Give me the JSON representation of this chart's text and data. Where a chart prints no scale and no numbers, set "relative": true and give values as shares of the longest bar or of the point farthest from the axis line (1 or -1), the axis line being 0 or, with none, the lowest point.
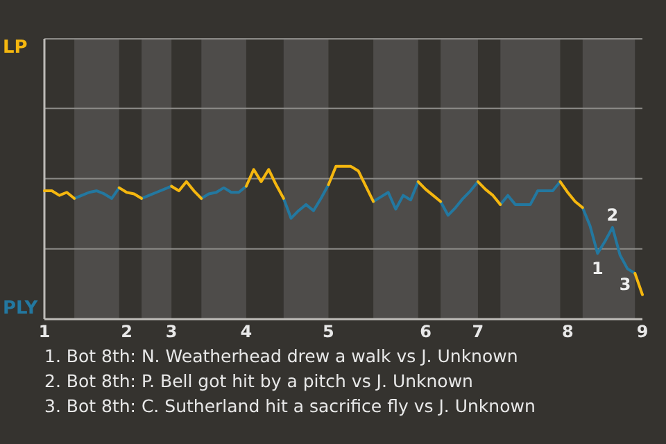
{
  "chart_data": {
    "type": "line",
    "relative": true,
    "categories": [
      "1",
      null,
      null,
      null,
      null,
      null,
      null,
      null,
      null,
      null,
      null,
      "2",
      null,
      null,
      null,
      null,
      null,
      "3",
      null,
      null,
      null,
      null,
      null,
      null,
      null,
      null,
      null,
      "4",
      null,
      null,
      null,
      null,
      null,
      null,
      null,
      null,
      null,
      null,
      "5",
      null,
      null,
      null,
      null,
      null,
      null,
      null,
      null,
      null,
      null,
      null,
      null,
      "6",
      null,
      null,
      null,
      null,
      null,
      null,
      "7",
      null,
      null,
      null,
      null,
      null,
      null,
      null,
      null,
      null,
      null,
      null,
      "8",
      null,
      null,
      null,
      null,
      null,
      null,
      null,
      null,
      null,
      "9"
    ],
    "legend": "left",
    "ref_lines": [
      {
        "axis": "y",
        "value": 0.46,
        "color": "#8c8b88"
      },
      {
        "axis": "y",
        "value": 0.92,
        "color": "#8c8b88"
      },
      {
        "axis": "y",
        "value": 1.38,
        "color": "#8c8b88"
      }
    ],
    "marker": "none",
    "line_style": "solid",
    "series": [
      {
        "name": "LP",
        "color": "#f5b70f",
        "values": [
          0.84,
          0.84,
          0.81,
          0.83,
          0.79,
          null,
          null,
          null,
          null,
          null,
          0.86,
          0.83,
          0.82,
          0.79,
          null,
          null,
          null,
          0.87,
          0.84,
          0.9,
          0.84,
          0.79,
          null,
          null,
          null,
          null,
          null,
          0.87,
          0.98,
          0.9,
          0.98,
          0.88,
          0.79,
          null,
          null,
          null,
          null,
          null,
          0.88,
          1,
          1,
          1,
          0.97,
          0.87,
          0.77,
          null,
          null,
          null,
          null,
          null,
          0.9,
          0.85,
          0.81,
          0.77,
          null,
          null,
          null,
          null,
          0.9,
          0.85,
          0.81,
          0.75,
          null,
          null,
          null,
          null,
          null,
          null,
          null,
          0.9,
          0.83,
          0.77,
          0.73,
          null,
          null,
          null,
          null,
          null,
          null,
          0.3,
          0.16
        ]
      },
      {
        "name": "PLY",
        "color": "#2378a0",
        "values": [
          null,
          null,
          null,
          null,
          0.79,
          0.81,
          0.83,
          0.84,
          0.82,
          0.79,
          0.86,
          null,
          null,
          0.79,
          0.81,
          0.83,
          0.85,
          0.87,
          null,
          null,
          null,
          0.79,
          0.82,
          0.83,
          0.86,
          0.83,
          0.83,
          0.87,
          null,
          null,
          null,
          null,
          0.79,
          0.66,
          0.71,
          0.75,
          0.71,
          0.79,
          0.88,
          null,
          null,
          null,
          null,
          null,
          0.77,
          0.8,
          0.83,
          0.72,
          0.81,
          0.78,
          0.9,
          null,
          null,
          0.77,
          0.68,
          0.73,
          0.79,
          0.84,
          0.9,
          null,
          null,
          0.75,
          0.81,
          0.75,
          0.75,
          0.75,
          0.84,
          0.84,
          0.84,
          0.9,
          null,
          null,
          0.73,
          0.61,
          0.43,
          0.51,
          0.6,
          0.42,
          0.33,
          0.3,
          null
        ]
      }
    ],
    "annotations": [
      {
        "text": "1",
        "y": 0.43
      },
      {
        "text": "2",
        "y": 0.6
      },
      {
        "text": "3",
        "y": 0.3
      },
      "1. Bot 8th: N. Weatherhead drew a walk vs J. Unknown",
      "2. Bot 8th: P. Bell got hit by a pitch vs J. Unknown",
      "3. Bot 8th: C. Sutherland hit a sacrifice fly vs J. Unknown"
    ]
  }
}
